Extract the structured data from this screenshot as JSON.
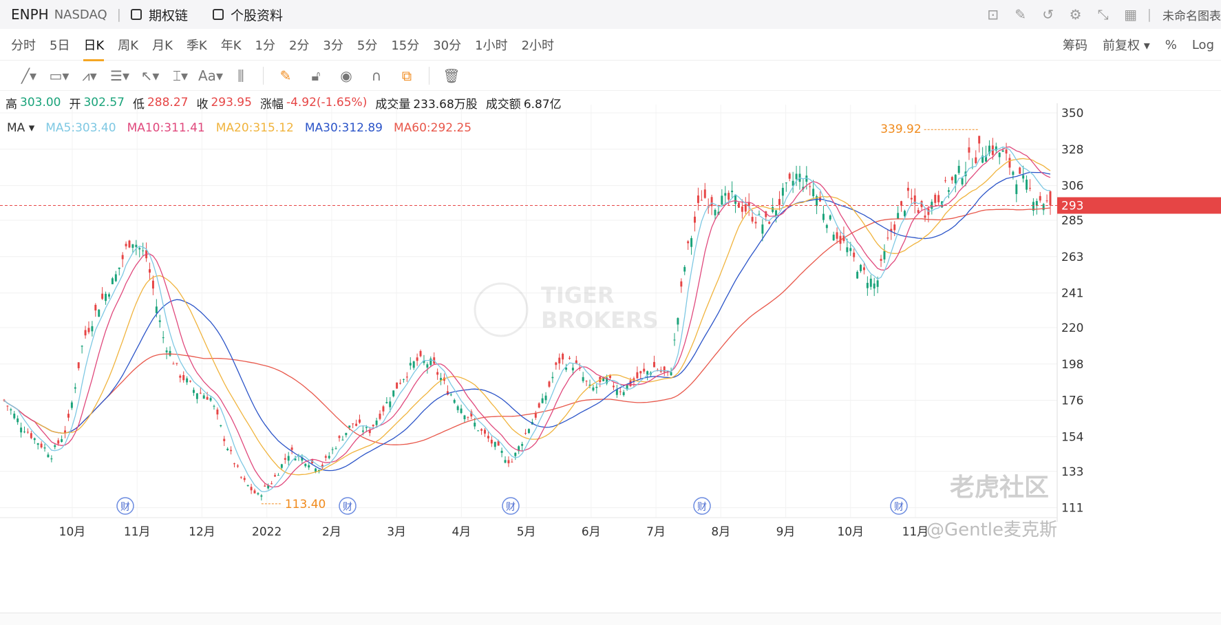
{
  "header": {
    "symbol": "ENPH",
    "exchange": "NASDAQ",
    "options_link": "期权链",
    "profile_link": "个股资料",
    "unnamed_chart": "未命名图表"
  },
  "periods": [
    "分时",
    "5日",
    "日K",
    "周K",
    "月K",
    "季K",
    "年K",
    "1分",
    "2分",
    "3分",
    "5分",
    "15分",
    "30分",
    "1小时",
    "2小时"
  ],
  "active_period": "日K",
  "period_right": {
    "chips": "筹码",
    "adjust": "前复权 ▾",
    "percent": "%",
    "log": "Log"
  },
  "ohlc": {
    "high_label": "高",
    "high": "303.00",
    "open_label": "开",
    "open": "302.57",
    "low_label": "低",
    "low": "288.27",
    "close_label": "收",
    "close": "293.95",
    "change_label": "涨幅",
    "change": "-4.92(-1.65%)",
    "volume_label": "成交量",
    "volume": "233.68万股",
    "turnover_label": "成交额",
    "turnover": "6.87亿"
  },
  "ma_legend": {
    "label": "MA ▾",
    "ma5": "MA5:303.40",
    "ma10": "MA10:311.41",
    "ma20": "MA20:315.12",
    "ma30": "MA30:312.89",
    "ma60": "MA60:292.25"
  },
  "colors": {
    "up": "#1aa37a",
    "down": "#e64545",
    "ma5": "#7ec8e3",
    "ma10": "#e0487c",
    "ma20": "#f0b33c",
    "ma30": "#2b54c8",
    "ma60": "#e8574a",
    "accent": "#f08a1c"
  },
  "watermark": {
    "brand1": "TIGER",
    "brand2": "BROKERS",
    "community": "老虎社区",
    "author": "@Gentle麦克斯"
  },
  "chart_data": {
    "type": "candlestick",
    "ylim": [
      105,
      355
    ],
    "y_ticks": [
      "350",
      "328",
      "306",
      "285",
      "263",
      "241",
      "220",
      "198",
      "176",
      "154",
      "133",
      "111"
    ],
    "x_ticks": [
      "10月",
      "11月",
      "12月",
      "2022",
      "2月",
      "3月",
      "4月",
      "5月",
      "6月",
      "7月",
      "8月",
      "9月",
      "10月",
      "11月"
    ],
    "current_price_tag": "293",
    "current_price": 293.95,
    "high_annotation": "339.92",
    "low_annotation": "113.40",
    "earnings_marker": "财",
    "grid": true,
    "close_path": [
      [
        "09-27",
        176
      ],
      [
        "10-06",
        162
      ],
      [
        "10-15",
        152
      ],
      [
        "10-22",
        143
      ],
      [
        "10-28",
        160
      ],
      [
        "11-03",
        213
      ],
      [
        "11-10",
        234
      ],
      [
        "11-17",
        250
      ],
      [
        "11-23",
        275
      ],
      [
        "11-30",
        262
      ],
      [
        "12-08",
        215
      ],
      [
        "12-15",
        193
      ],
      [
        "12-22",
        182
      ],
      [
        "12-30",
        178
      ],
      [
        "01-07",
        150
      ],
      [
        "01-14",
        128
      ],
      [
        "01-21",
        118
      ],
      [
        "01-28",
        128
      ],
      [
        "02-04",
        145
      ],
      [
        "02-11",
        140
      ],
      [
        "02-18",
        135
      ],
      [
        "02-25",
        150
      ],
      [
        "03-04",
        162
      ],
      [
        "03-11",
        157
      ],
      [
        "03-18",
        172
      ],
      [
        "03-25",
        188
      ],
      [
        "04-01",
        200
      ],
      [
        "04-08",
        198
      ],
      [
        "04-15",
        182
      ],
      [
        "04-22",
        170
      ],
      [
        "04-29",
        158
      ],
      [
        "05-06",
        148
      ],
      [
        "05-13",
        138
      ],
      [
        "05-20",
        158
      ],
      [
        "05-27",
        175
      ],
      [
        "06-03",
        200
      ],
      [
        "06-10",
        198
      ],
      [
        "06-17",
        182
      ],
      [
        "06-24",
        188
      ],
      [
        "07-01",
        182
      ],
      [
        "07-08",
        190
      ],
      [
        "07-15",
        196
      ],
      [
        "07-22",
        190
      ],
      [
        "07-29",
        262
      ],
      [
        "08-05",
        300
      ],
      [
        "08-12",
        295
      ],
      [
        "08-19",
        298
      ],
      [
        "08-26",
        290
      ],
      [
        "09-02",
        282
      ],
      [
        "09-09",
        298
      ],
      [
        "09-16",
        312
      ],
      [
        "09-23",
        305
      ],
      [
        "09-30",
        285
      ],
      [
        "10-07",
        270
      ],
      [
        "10-14",
        255
      ],
      [
        "10-21",
        245
      ],
      [
        "10-28",
        280
      ],
      [
        "11-04",
        298
      ],
      [
        "11-11",
        290
      ],
      [
        "11-18",
        300
      ],
      [
        "11-25",
        310
      ],
      [
        "12-02",
        322
      ],
      [
        "12-09",
        330
      ],
      [
        "12-14",
        325
      ],
      [
        "12-19",
        310
      ],
      [
        "12-23",
        300
      ],
      [
        "12-28",
        293.95
      ]
    ],
    "ma_final": {
      "MA5": 303.4,
      "MA10": 311.41,
      "MA20": 315.12,
      "MA30": 312.89,
      "MA60": 292.25
    }
  }
}
